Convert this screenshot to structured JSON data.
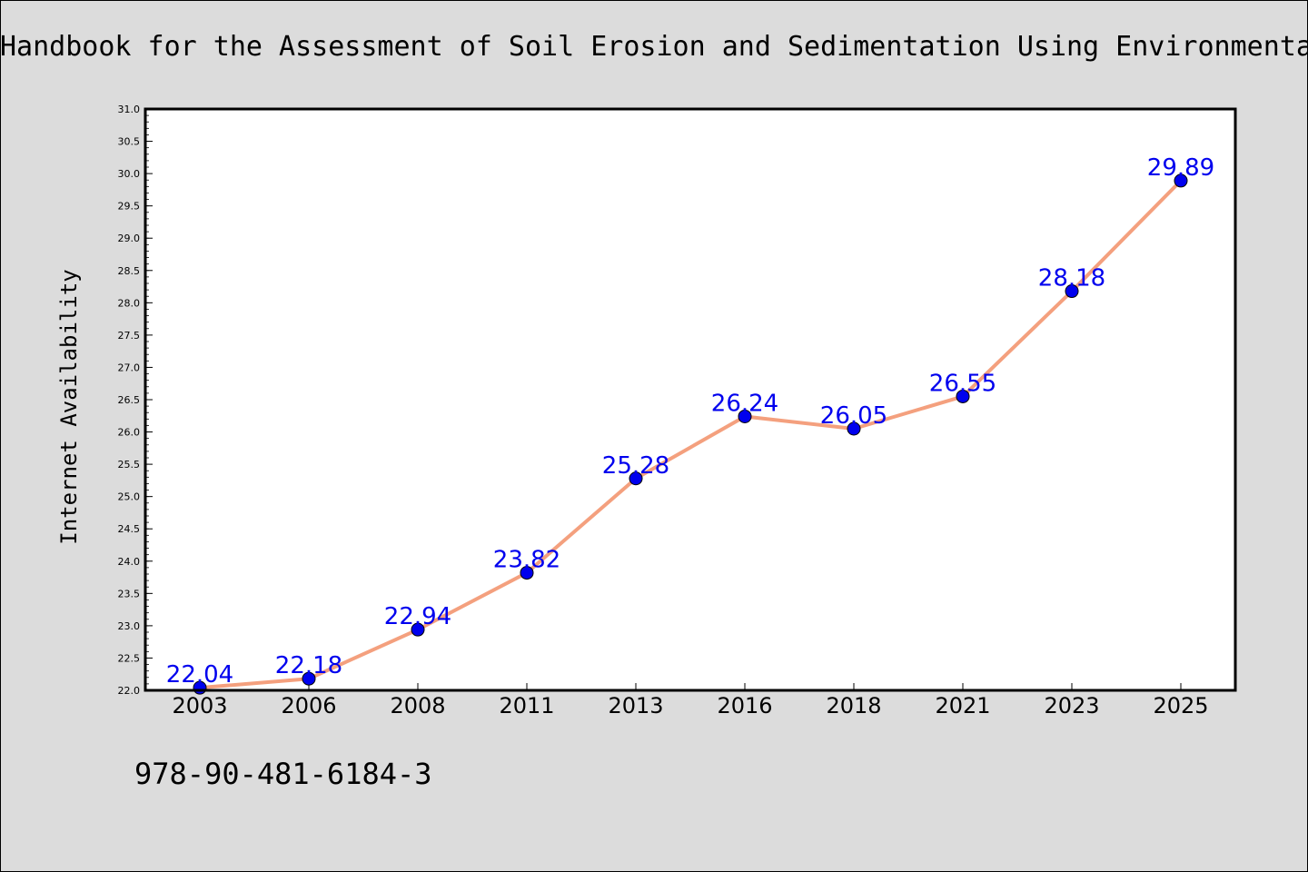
{
  "chart_data": {
    "type": "line",
    "title": "Handbook for the Assessment of Soil Erosion and Sedimentation Using Environmental Radionuclides",
    "xlabel": "",
    "ylabel": "Internet Availability",
    "categories": [
      "2003",
      "2006",
      "2008",
      "2011",
      "2013",
      "2016",
      "2018",
      "2021",
      "2023",
      "2025"
    ],
    "series": [
      {
        "values": [
          22.04,
          22.18,
          22.94,
          23.82,
          25.28,
          26.24,
          26.05,
          26.55,
          28.18,
          29.89
        ]
      }
    ],
    "data_labels": [
      "22.04",
      "22.18",
      "22.94",
      "23.82",
      "25.28",
      "26.24",
      "26.05",
      "26.55",
      "28.18",
      "29.89"
    ],
    "ylim": [
      22.0,
      31.0
    ],
    "y_ticks": [
      "22.0",
      "22.5",
      "23.0",
      "23.5",
      "24.0",
      "24.5",
      "25.0",
      "25.5",
      "26.0",
      "26.5",
      "27.0",
      "27.5",
      "28.0",
      "28.5",
      "29.0",
      "29.5",
      "30.0",
      "30.5",
      "31.0"
    ],
    "grid": false,
    "legend": "none",
    "colors": {
      "line": "#f4a07e",
      "marker": "#0000ee",
      "data_label": "#0000ee",
      "plot_background": "#ffffff",
      "page_background": "#dcdcdc"
    }
  },
  "footer": {
    "isbn": "978-90-481-6184-3"
  }
}
